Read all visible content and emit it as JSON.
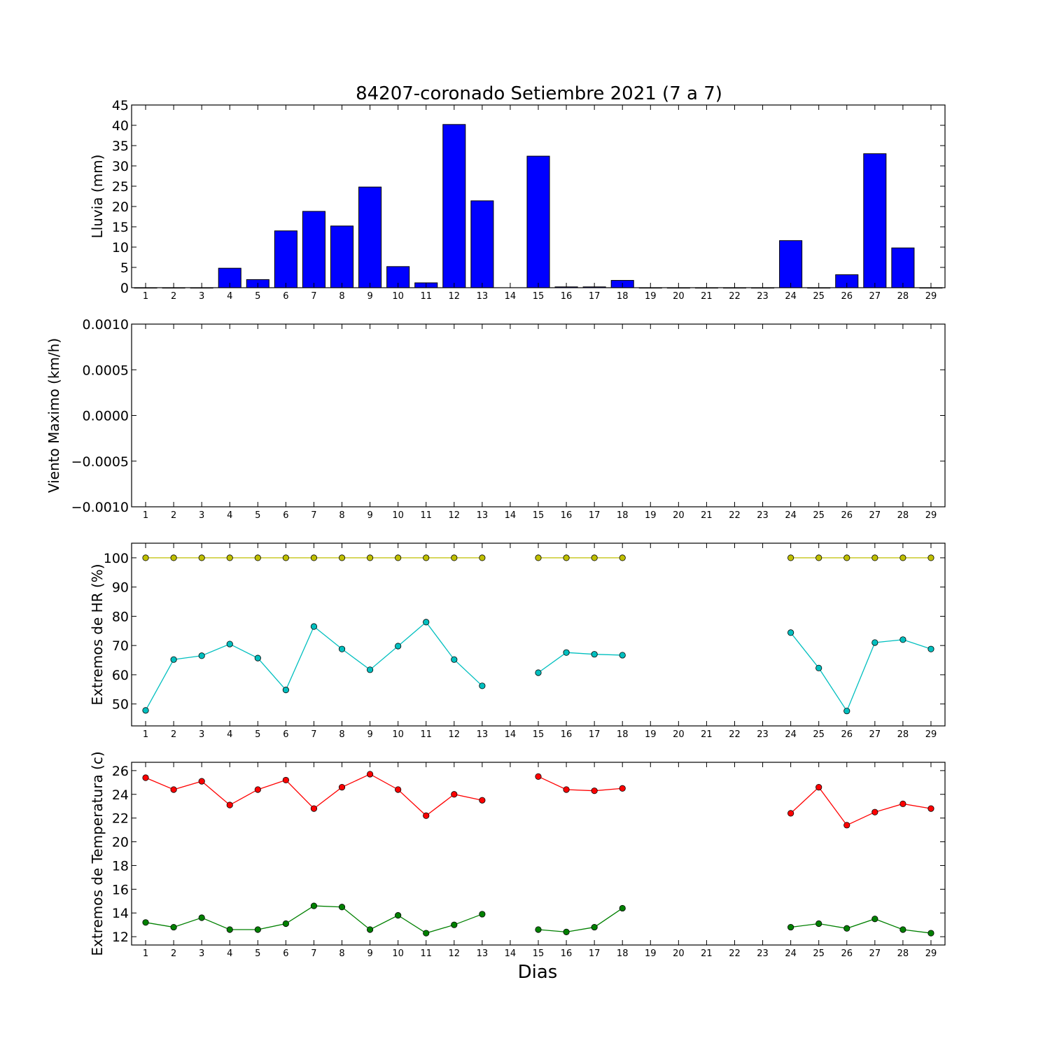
{
  "figure": {
    "title": "84207-coronado Setiembre 2021  (7 a 7)",
    "xlabel": "Dias"
  },
  "chart_data": [
    {
      "type": "bar",
      "ylabel": "Lluvia (mm)",
      "ylim": [
        0,
        45
      ],
      "yticks": [
        0,
        5,
        10,
        15,
        20,
        25,
        30,
        35,
        40,
        45
      ],
      "ytick_labels": [
        "0",
        "5",
        "10",
        "15",
        "20",
        "25",
        "30",
        "35",
        "40",
        "45"
      ],
      "x": [
        1,
        2,
        3,
        4,
        5,
        6,
        7,
        8,
        9,
        10,
        11,
        12,
        13,
        14,
        15,
        16,
        17,
        18,
        19,
        20,
        21,
        22,
        23,
        24,
        25,
        26,
        27,
        28,
        29
      ],
      "series": [
        {
          "color": "#0000ff",
          "values": [
            0,
            0,
            0,
            4.8,
            2.0,
            14.0,
            18.8,
            15.2,
            24.8,
            5.2,
            1.2,
            40.2,
            21.4,
            null,
            32.4,
            0.2,
            0.2,
            1.8,
            0,
            0,
            0,
            0,
            0,
            11.6,
            0,
            3.2,
            33.0,
            9.8,
            0
          ]
        }
      ]
    },
    {
      "type": "line",
      "ylabel": "Viento Maximo (km/h)",
      "ylim": [
        -0.001,
        0.001
      ],
      "yticks": [
        -0.001,
        -0.0005,
        0,
        0.0005,
        0.001
      ],
      "ytick_labels": [
        "−0.0010",
        "−0.0005",
        "0.0000",
        "0.0005",
        "0.0010"
      ],
      "x": [
        1,
        2,
        3,
        4,
        5,
        6,
        7,
        8,
        9,
        10,
        11,
        12,
        13,
        14,
        15,
        16,
        17,
        18,
        19,
        20,
        21,
        22,
        23,
        24,
        25,
        26,
        27,
        28,
        29
      ],
      "series": []
    },
    {
      "type": "line",
      "ylabel": "Extremos de HR (%)",
      "ylim": [
        42.5,
        105
      ],
      "yticks": [
        50,
        60,
        70,
        80,
        90,
        100
      ],
      "ytick_labels": [
        "50",
        "60",
        "70",
        "80",
        "90",
        "100"
      ],
      "x": [
        1,
        2,
        3,
        4,
        5,
        6,
        7,
        8,
        9,
        10,
        11,
        12,
        13,
        14,
        15,
        16,
        17,
        18,
        19,
        20,
        21,
        22,
        23,
        24,
        25,
        26,
        27,
        28,
        29
      ],
      "series": [
        {
          "color": "#bfbf00",
          "values": [
            100,
            100,
            100,
            100,
            100,
            100,
            100,
            100,
            100,
            100,
            100,
            100,
            100,
            null,
            100,
            100,
            100,
            100,
            null,
            null,
            null,
            null,
            null,
            100,
            100,
            100,
            100,
            100,
            100
          ]
        },
        {
          "color": "#00bfbf",
          "values": [
            47.8,
            65.2,
            66.5,
            70.5,
            65.7,
            54.8,
            76.5,
            68.8,
            61.7,
            69.8,
            78.0,
            65.2,
            56.2,
            null,
            60.7,
            67.6,
            67.0,
            66.7,
            null,
            null,
            null,
            null,
            null,
            74.4,
            62.3,
            47.6,
            71.0,
            72.0,
            68.8
          ]
        }
      ]
    },
    {
      "type": "line",
      "ylabel": "Extremos de Temperatura (c)",
      "ylim": [
        11.3,
        26.7
      ],
      "yticks": [
        12,
        14,
        16,
        18,
        20,
        22,
        24,
        26
      ],
      "ytick_labels": [
        "12",
        "14",
        "16",
        "18",
        "20",
        "22",
        "24",
        "26"
      ],
      "x": [
        1,
        2,
        3,
        4,
        5,
        6,
        7,
        8,
        9,
        10,
        11,
        12,
        13,
        14,
        15,
        16,
        17,
        18,
        19,
        20,
        21,
        22,
        23,
        24,
        25,
        26,
        27,
        28,
        29
      ],
      "series": [
        {
          "color": "#ff0000",
          "values": [
            25.4,
            24.4,
            25.1,
            23.1,
            24.4,
            25.2,
            22.8,
            24.6,
            25.7,
            24.4,
            22.2,
            24.0,
            23.5,
            null,
            25.5,
            24.4,
            24.3,
            24.5,
            null,
            null,
            null,
            null,
            null,
            22.4,
            24.6,
            21.4,
            22.5,
            23.2,
            22.8
          ]
        },
        {
          "color": "#008000",
          "values": [
            13.2,
            12.8,
            13.6,
            12.6,
            12.6,
            13.1,
            14.6,
            14.5,
            12.6,
            13.8,
            12.3,
            13.0,
            13.9,
            null,
            12.6,
            12.4,
            12.8,
            14.4,
            null,
            null,
            null,
            null,
            null,
            12.8,
            13.1,
            12.7,
            13.5,
            12.6,
            12.3
          ]
        }
      ]
    }
  ]
}
